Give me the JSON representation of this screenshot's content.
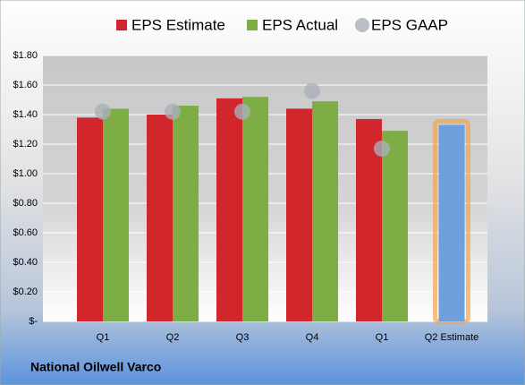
{
  "chart_data": {
    "type": "bar",
    "categories": [
      "Q1",
      "Q2",
      "Q3",
      "Q4",
      "Q1",
      "Q2 Estimate"
    ],
    "series": [
      {
        "name": "EPS Estimate",
        "color": "#d0262c",
        "values": [
          1.38,
          1.4,
          1.51,
          1.44,
          1.37,
          1.33
        ],
        "colors": [
          "#d0262c",
          "#d0262c",
          "#d0262c",
          "#d0262c",
          "#d0262c",
          "#6f9fdc"
        ]
      },
      {
        "name": "EPS Actual",
        "color": "#7fad45",
        "values": [
          1.44,
          1.46,
          1.52,
          1.49,
          1.29,
          null
        ]
      },
      {
        "name": "EPS GAAP",
        "color": "#a9b0b8",
        "values": [
          1.42,
          1.42,
          1.42,
          1.56,
          1.17,
          null
        ]
      }
    ],
    "ylim": [
      0,
      1.8
    ],
    "yticks": [
      {
        "value": 0,
        "label": "$-"
      },
      {
        "value": 0.2,
        "label": "$0.20"
      },
      {
        "value": 0.4,
        "label": "$0.40"
      },
      {
        "value": 0.6,
        "label": "$0.60"
      },
      {
        "value": 0.8,
        "label": "$0.80"
      },
      {
        "value": 1.0,
        "label": "$1.00"
      },
      {
        "value": 1.2,
        "label": "$1.20"
      },
      {
        "value": 1.4,
        "label": "$1.40"
      },
      {
        "value": 1.6,
        "label": "$1.60"
      },
      {
        "value": 1.8,
        "label": "$1.80"
      }
    ],
    "grid": true,
    "footer": "National Oilwell Varco"
  }
}
